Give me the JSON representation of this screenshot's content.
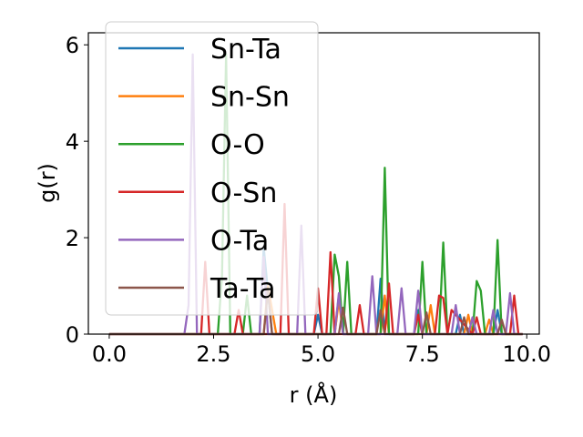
{
  "chart_data": {
    "type": "line",
    "title": "",
    "xlabel": "r (Å)",
    "ylabel": "g(r)",
    "xlim": [
      -0.5,
      10.3
    ],
    "ylim": [
      0,
      6.25
    ],
    "xticks": [
      0.0,
      2.5,
      5.0,
      7.5,
      10.0
    ],
    "xtick_labels": [
      "0.0",
      "2.5",
      "5.0",
      "7.5",
      "10.0"
    ],
    "yticks": [
      0,
      2,
      4,
      6
    ],
    "ytick_labels": [
      "0",
      "2",
      "4",
      "6"
    ],
    "grid": false,
    "legend_position": "upper-left",
    "series": [
      {
        "name": "Sn-Ta",
        "color": "#1f77b4",
        "x": [
          0,
          3.6,
          3.7,
          3.8,
          3.9,
          4.9,
          5.0,
          5.1,
          5.4,
          5.5,
          5.6,
          6.4,
          6.5,
          6.6,
          6.7,
          7.3,
          7.4,
          7.5,
          8.3,
          8.4,
          8.5,
          9.2,
          9.3,
          9.4,
          9.9
        ],
        "y": [
          0,
          0,
          1.8,
          0.9,
          0,
          0,
          0.4,
          0,
          0,
          0.8,
          0,
          0,
          1.15,
          0,
          0,
          0,
          0.5,
          0,
          0,
          0.4,
          0,
          0,
          0.5,
          0,
          0
        ]
      },
      {
        "name": "Sn-Sn",
        "color": "#ff7f0e",
        "x": [
          0,
          3.7,
          3.8,
          3.9,
          4.0,
          5.4,
          5.5,
          5.6,
          6.5,
          6.6,
          6.7,
          7.6,
          7.7,
          7.8,
          8.5,
          8.6,
          8.7,
          9.0,
          9.1,
          9.2,
          9.9
        ],
        "y": [
          0,
          0,
          1.0,
          0.5,
          0,
          0,
          0.7,
          0,
          0,
          0.8,
          0,
          0,
          0.6,
          0,
          0,
          0.4,
          0,
          0,
          0.3,
          0,
          0
        ]
      },
      {
        "name": "O-O",
        "color": "#2ca02c",
        "x": [
          0,
          2.6,
          2.7,
          2.8,
          2.9,
          3.2,
          3.3,
          3.4,
          5.3,
          5.4,
          5.5,
          5.6,
          5.7,
          5.8,
          6.5,
          6.6,
          6.7,
          7.4,
          7.5,
          7.6,
          7.9,
          8.0,
          8.1,
          8.7,
          8.8,
          8.9,
          9.0,
          9.2,
          9.3,
          9.4,
          9.8
        ],
        "y": [
          0,
          0,
          1.2,
          5.8,
          0,
          0,
          0.8,
          0,
          0,
          1.65,
          1.2,
          0,
          1.5,
          0,
          0,
          3.45,
          0,
          0,
          1.5,
          0,
          0,
          1.9,
          0,
          0,
          1.1,
          0.9,
          0,
          0,
          1.95,
          0,
          0
        ]
      },
      {
        "name": "O-Sn",
        "color": "#d62728",
        "x": [
          0,
          2.2,
          2.3,
          2.4,
          3.0,
          3.1,
          3.2,
          4.1,
          4.2,
          4.3,
          4.9,
          5.0,
          5.1,
          5.2,
          5.3,
          5.4,
          5.9,
          6.0,
          6.1,
          6.6,
          6.7,
          6.8,
          7.3,
          7.4,
          7.5,
          7.8,
          7.9,
          8.0,
          8.1,
          8.2,
          8.7,
          8.8,
          8.9,
          9.6,
          9.7,
          9.8,
          9.9
        ],
        "y": [
          0,
          0,
          1.5,
          0,
          0,
          0.5,
          0,
          0,
          2.7,
          0,
          0,
          0.95,
          0,
          0,
          1.7,
          0,
          0,
          0.6,
          0,
          0,
          1.05,
          0,
          0,
          0.4,
          0,
          0,
          0.8,
          0.75,
          0,
          0.5,
          0,
          0.35,
          0,
          0,
          0.8,
          0,
          0
        ]
      },
      {
        "name": "O-Ta",
        "color": "#9467bd",
        "x": [
          0,
          1.8,
          1.9,
          2.0,
          2.1,
          3.6,
          3.7,
          3.8,
          4.5,
          4.6,
          4.7,
          5.4,
          5.5,
          5.6,
          6.2,
          6.3,
          6.4,
          6.9,
          7.0,
          7.1,
          7.3,
          7.4,
          7.5,
          8.2,
          8.3,
          8.4,
          8.6,
          8.7,
          8.8,
          9.1,
          9.2,
          9.3,
          9.5,
          9.6,
          9.7,
          9.9
        ],
        "y": [
          0,
          0,
          0.6,
          5.8,
          0,
          0,
          1.6,
          0,
          0,
          2.25,
          0,
          0,
          0.85,
          0,
          0,
          1.2,
          0,
          0,
          0.95,
          0,
          0,
          0.9,
          0,
          0,
          0.6,
          0,
          0,
          0.35,
          0,
          0,
          0.5,
          0,
          0,
          0.85,
          0,
          0
        ]
      },
      {
        "name": "Ta-Ta",
        "color": "#8c564b",
        "x": [
          0,
          3.7,
          3.8,
          3.9,
          5.5,
          5.6,
          5.7,
          6.4,
          6.5,
          6.6,
          7.5,
          7.6,
          7.7,
          8.4,
          8.5,
          8.6,
          9.3,
          9.4,
          9.5,
          9.9
        ],
        "y": [
          0,
          0,
          0.9,
          0,
          0,
          0.55,
          0,
          0,
          0.5,
          0,
          0,
          0.45,
          0,
          0,
          0.35,
          0,
          0,
          0.3,
          0,
          0
        ]
      }
    ]
  }
}
